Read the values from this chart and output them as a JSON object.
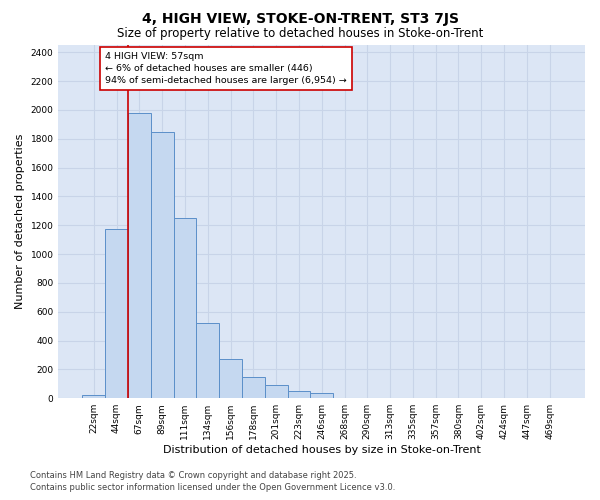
{
  "title": "4, HIGH VIEW, STOKE-ON-TRENT, ST3 7JS",
  "subtitle": "Size of property relative to detached houses in Stoke-on-Trent",
  "xlabel": "Distribution of detached houses by size in Stoke-on-Trent",
  "ylabel": "Number of detached properties",
  "categories": [
    "22sqm",
    "44sqm",
    "67sqm",
    "89sqm",
    "111sqm",
    "134sqm",
    "156sqm",
    "178sqm",
    "201sqm",
    "223sqm",
    "246sqm",
    "268sqm",
    "290sqm",
    "313sqm",
    "335sqm",
    "357sqm",
    "380sqm",
    "402sqm",
    "424sqm",
    "447sqm",
    "469sqm"
  ],
  "values": [
    25,
    1175,
    1975,
    1850,
    1250,
    525,
    275,
    150,
    90,
    50,
    35,
    0,
    0,
    0,
    0,
    0,
    0,
    0,
    0,
    0,
    0
  ],
  "bar_color": "#c5d8f0",
  "bar_edge_color": "#5b8fc9",
  "grid_color": "#c8d4e8",
  "plot_bg_color": "#dce6f5",
  "fig_bg_color": "#ffffff",
  "vline_color": "#cc0000",
  "vline_x": 1.5,
  "annotation_text": "4 HIGH VIEW: 57sqm\n← 6% of detached houses are smaller (446)\n94% of semi-detached houses are larger (6,954) →",
  "annotation_box_facecolor": "#ffffff",
  "annotation_box_edgecolor": "#cc0000",
  "ylim": [
    0,
    2450
  ],
  "yticks": [
    0,
    200,
    400,
    600,
    800,
    1000,
    1200,
    1400,
    1600,
    1800,
    2000,
    2200,
    2400
  ],
  "title_fontsize": 10,
  "subtitle_fontsize": 8.5,
  "axis_label_fontsize": 8,
  "tick_fontsize": 6.5,
  "annot_fontsize": 6.8,
  "footnote_fontsize": 6,
  "footnote": "Contains HM Land Registry data © Crown copyright and database right 2025.\nContains public sector information licensed under the Open Government Licence v3.0."
}
